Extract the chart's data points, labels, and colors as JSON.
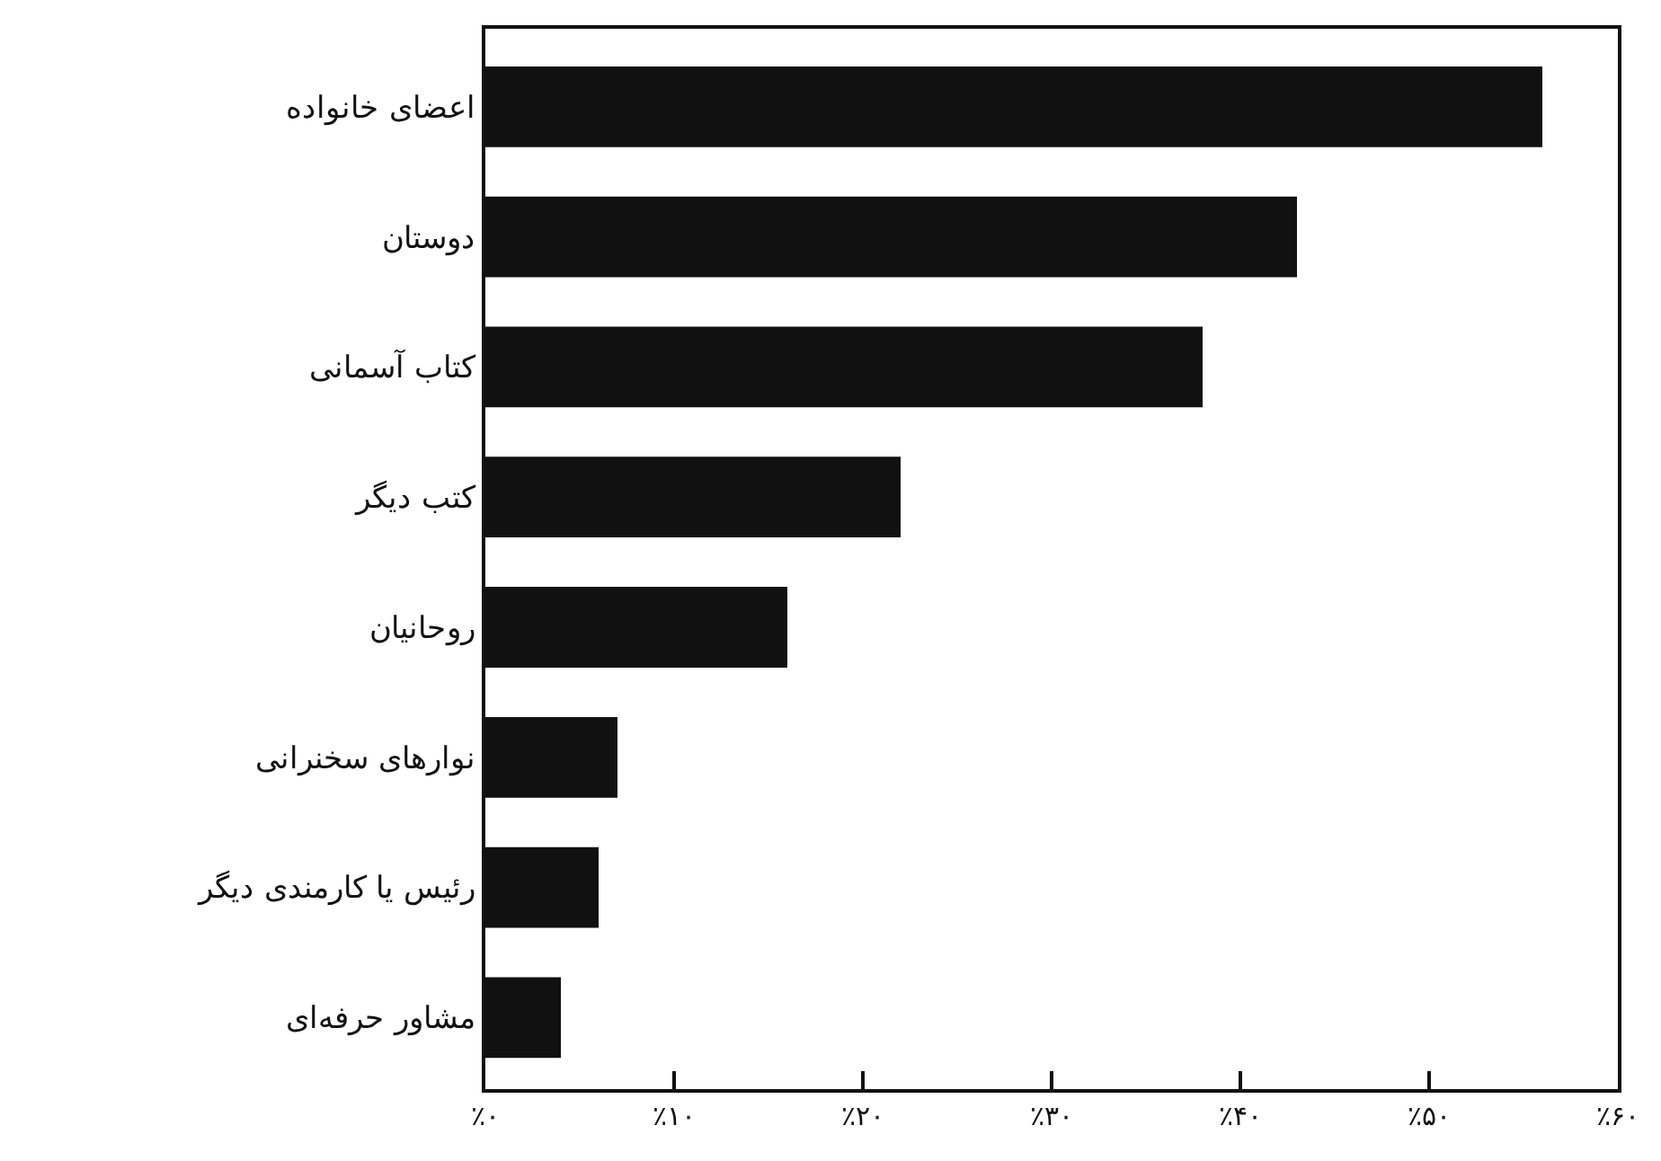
{
  "chart_data": {
    "type": "bar",
    "orientation": "horizontal",
    "categories": [
      "اعضای خانواده",
      "دوستان",
      "کتاب آسمانی",
      "کتب دیگر",
      "روحانیان",
      "نوارهای سخنرانی",
      "رئیس یا کارمندی دیگر",
      "مشاور حرفه‌ای"
    ],
    "values": [
      56,
      43,
      38,
      22,
      16,
      7,
      6,
      4
    ],
    "color": "#111111",
    "xlim": [
      0,
      60
    ],
    "xticks": [
      {
        "value": 0,
        "label": "٪۰"
      },
      {
        "value": 10,
        "label": "٪۱۰"
      },
      {
        "value": 20,
        "label": "٪۲۰"
      },
      {
        "value": 30,
        "label": "٪۳۰"
      },
      {
        "value": 40,
        "label": "٪۴۰"
      },
      {
        "value": 50,
        "label": "٪۵۰"
      },
      {
        "value": 60,
        "label": "٪۶۰"
      }
    ],
    "grid": false
  }
}
